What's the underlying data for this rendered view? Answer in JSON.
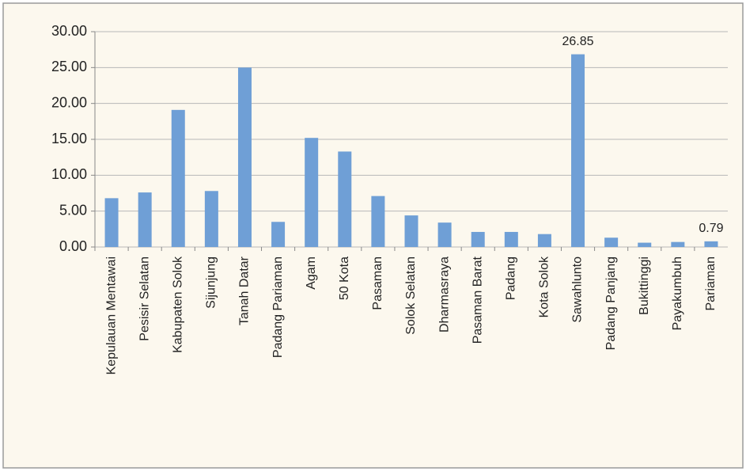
{
  "chart_data": {
    "type": "bar",
    "categories": [
      "Kepulauan Mentawai",
      "Pesisir Selatan",
      "Kabupaten Solok",
      "Sijunjung",
      "Tanah Datar",
      "Padang Pariaman",
      "Agam",
      "50 Kota",
      "Pasaman",
      "Solok Selatan",
      "Dharmasraya",
      "Pasaman Barat",
      "Padang",
      "Kota Solok",
      "Sawahlunto",
      "Padang Panjang",
      "Bukittinggi",
      "Payakumbuh",
      "Pariaman"
    ],
    "values": [
      6.8,
      7.6,
      19.1,
      7.8,
      25.0,
      3.5,
      15.2,
      13.3,
      7.1,
      4.4,
      3.4,
      2.1,
      2.1,
      1.8,
      26.85,
      1.3,
      0.6,
      0.7,
      0.79
    ],
    "value_labels": [
      null,
      null,
      null,
      null,
      null,
      null,
      null,
      null,
      null,
      null,
      null,
      null,
      null,
      null,
      "26.85",
      null,
      null,
      null,
      "0.79"
    ],
    "color": "#6f9fd6",
    "ylim": [
      0,
      30
    ],
    "yticks": [
      {
        "value": 0,
        "label": "0.00"
      },
      {
        "value": 5,
        "label": "5.00"
      },
      {
        "value": 10,
        "label": "10.00"
      },
      {
        "value": 15,
        "label": "15.00"
      },
      {
        "value": 20,
        "label": "20.00"
      },
      {
        "value": 25,
        "label": "25.00"
      },
      {
        "value": 30,
        "label": "30.00"
      }
    ],
    "grid": true
  }
}
